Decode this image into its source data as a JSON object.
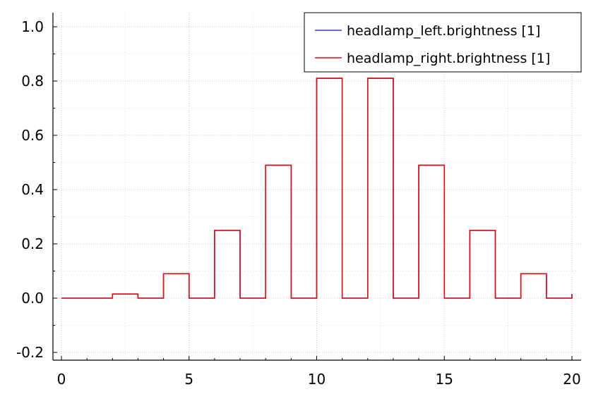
{
  "chart_data": {
    "type": "line",
    "title": "",
    "xlabel": "",
    "ylabel": "",
    "xlim": [
      0,
      20
    ],
    "ylim": [
      -0.2,
      1.0
    ],
    "x_ticks": [
      0,
      5,
      10,
      15,
      20
    ],
    "x_tick_labels": [
      "0",
      "5",
      "10",
      "15",
      "20"
    ],
    "y_ticks": [
      -0.2,
      0.0,
      0.2,
      0.4,
      0.6,
      0.8,
      1.0
    ],
    "y_tick_labels": [
      "-0.2",
      "0.0",
      "0.2",
      "0.4",
      "0.6",
      "0.8",
      "1.0"
    ],
    "grid": true,
    "legend_position": "top-right",
    "series": [
      {
        "name": "headlamp_left.brightness [1]",
        "color": "#3a3ac8",
        "x": [
          0,
          2,
          2,
          3,
          3,
          4,
          4,
          5,
          5,
          6,
          6,
          7,
          7,
          8,
          8,
          9,
          9,
          10,
          10,
          11,
          11,
          12,
          12,
          13,
          13,
          14,
          14,
          15,
          15,
          16,
          16,
          17,
          17,
          18,
          18,
          19,
          19,
          20,
          20
        ],
        "y": [
          0,
          0,
          0.015,
          0.015,
          0,
          0,
          0.09,
          0.09,
          0,
          0,
          0.25,
          0.25,
          0,
          0,
          0.49,
          0.49,
          0,
          0,
          0.81,
          0.81,
          0,
          0,
          0.81,
          0.81,
          0,
          0,
          0.49,
          0.49,
          0,
          0,
          0.25,
          0.25,
          0,
          0,
          0.09,
          0.09,
          0,
          0,
          0.015
        ]
      },
      {
        "name": "headlamp_right.brightness [1]",
        "color": "#e01010",
        "x": [
          0,
          2,
          2,
          3,
          3,
          4,
          4,
          5,
          5,
          6,
          6,
          7,
          7,
          8,
          8,
          9,
          9,
          10,
          10,
          11,
          11,
          12,
          12,
          13,
          13,
          14,
          14,
          15,
          15,
          16,
          16,
          17,
          17,
          18,
          18,
          19,
          19,
          20,
          20
        ],
        "y": [
          0,
          0,
          0.015,
          0.015,
          0,
          0,
          0.09,
          0.09,
          0,
          0,
          0.25,
          0.25,
          0,
          0,
          0.49,
          0.49,
          0,
          0,
          0.81,
          0.81,
          0,
          0,
          0.81,
          0.81,
          0,
          0,
          0.49,
          0.49,
          0,
          0,
          0.25,
          0.25,
          0,
          0,
          0.09,
          0.09,
          0,
          0,
          0.015
        ]
      }
    ]
  }
}
